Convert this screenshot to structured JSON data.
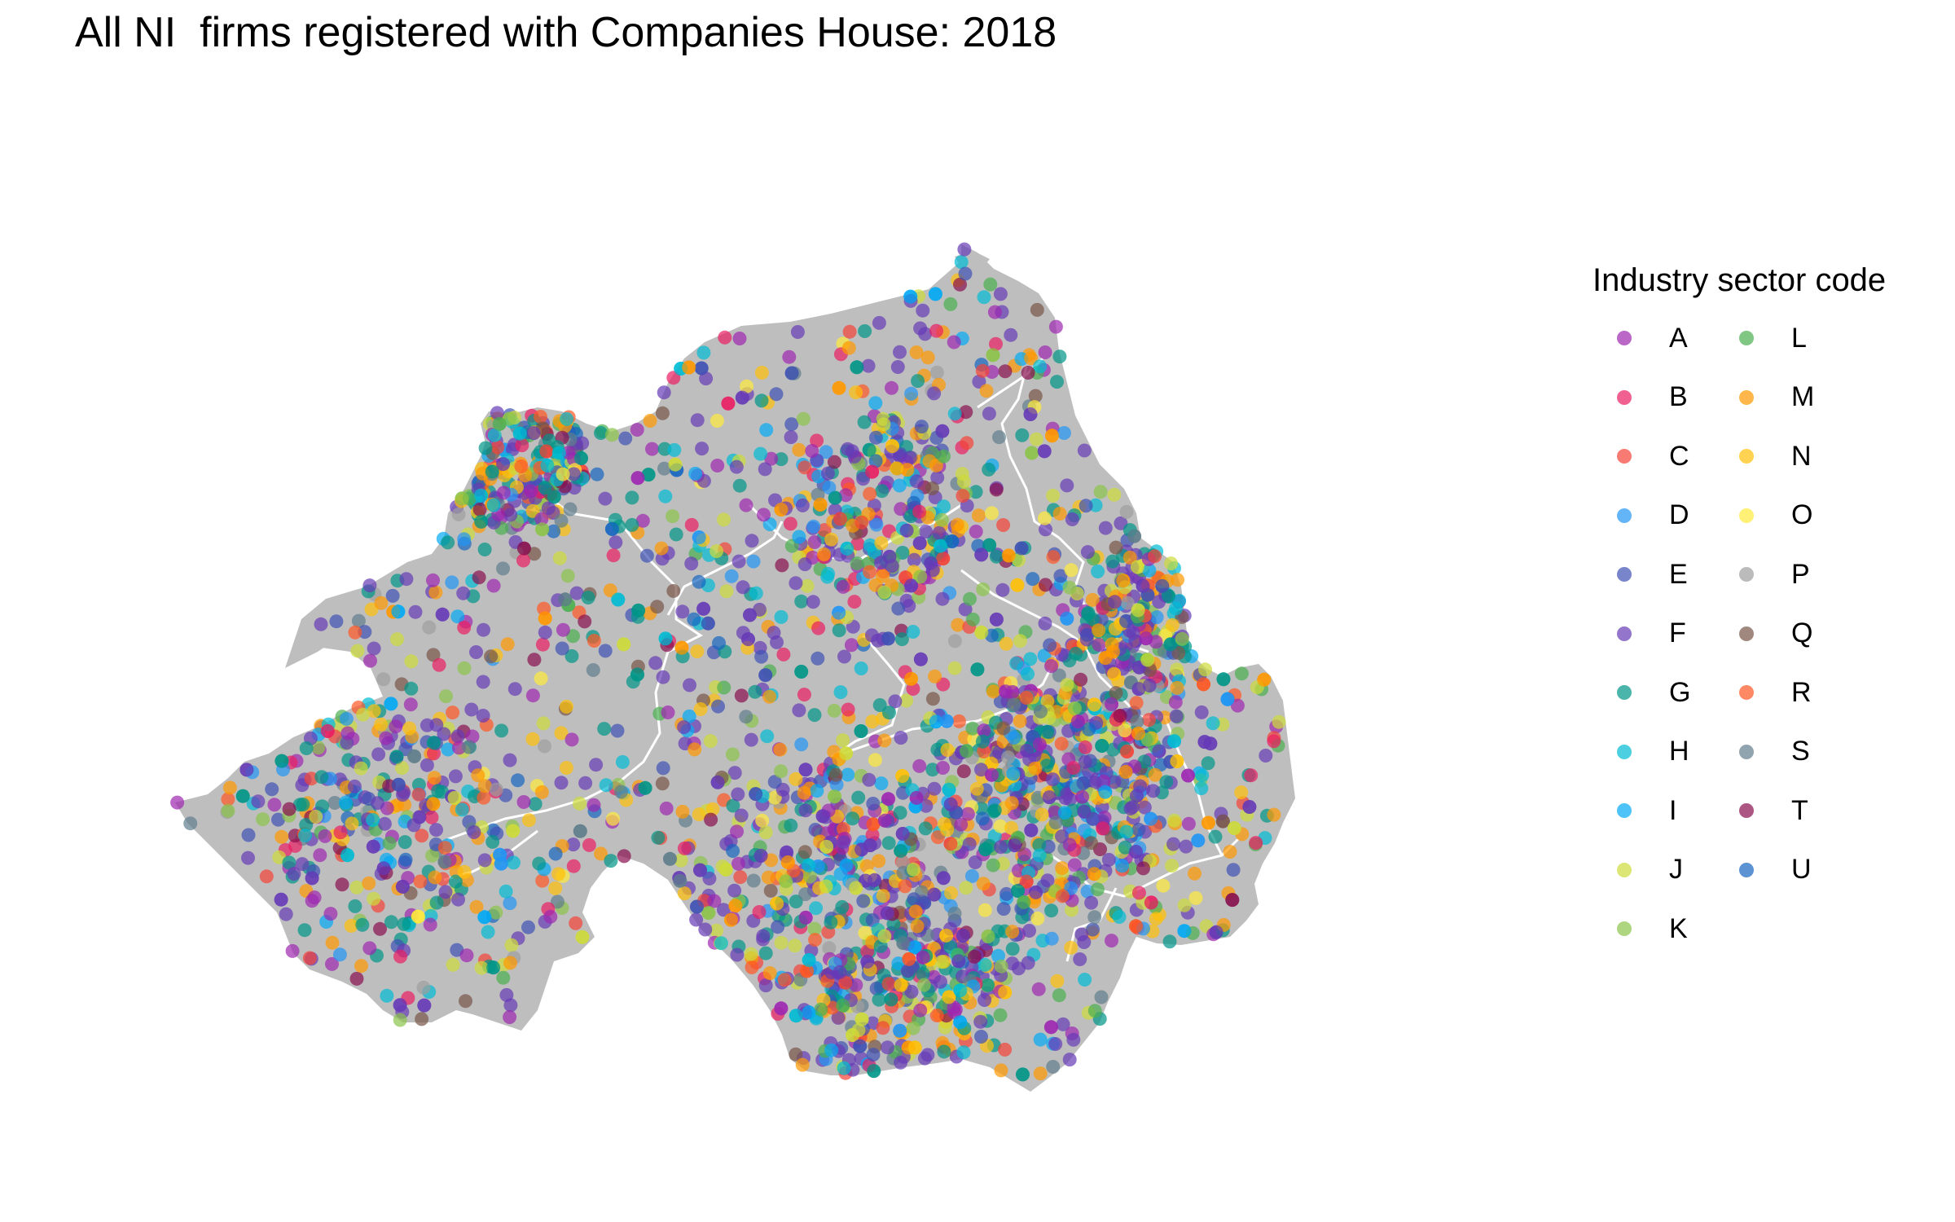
{
  "title": "All NI  firms registered with Companies House: 2018",
  "legend": {
    "title": "Industry sector code",
    "items": [
      {
        "code": "A",
        "color": "#9C27B0"
      },
      {
        "code": "B",
        "color": "#E91E63"
      },
      {
        "code": "C",
        "color": "#F44336"
      },
      {
        "code": "D",
        "color": "#2196F3"
      },
      {
        "code": "E",
        "color": "#3F51B5"
      },
      {
        "code": "F",
        "color": "#673AB7"
      },
      {
        "code": "G",
        "color": "#009688"
      },
      {
        "code": "H",
        "color": "#00BCD4"
      },
      {
        "code": "I",
        "color": "#03A9F4"
      },
      {
        "code": "J",
        "color": "#CDDC39"
      },
      {
        "code": "K",
        "color": "#8BC34A"
      },
      {
        "code": "L",
        "color": "#4CAF50"
      },
      {
        "code": "M",
        "color": "#FF9800"
      },
      {
        "code": "N",
        "color": "#FFC107"
      },
      {
        "code": "O",
        "color": "#FFEB3B"
      },
      {
        "code": "P",
        "color": "#9E9E9E"
      },
      {
        "code": "Q",
        "color": "#795548"
      },
      {
        "code": "R",
        "color": "#FF5722"
      },
      {
        "code": "S",
        "color": "#607D8B"
      },
      {
        "code": "T",
        "color": "#880E4F"
      },
      {
        "code": "U",
        "color": "#1565C0"
      }
    ]
  },
  "map": {
    "land_color": "#BEBEBE",
    "boundary_color": "#FFFFFF"
  }
}
